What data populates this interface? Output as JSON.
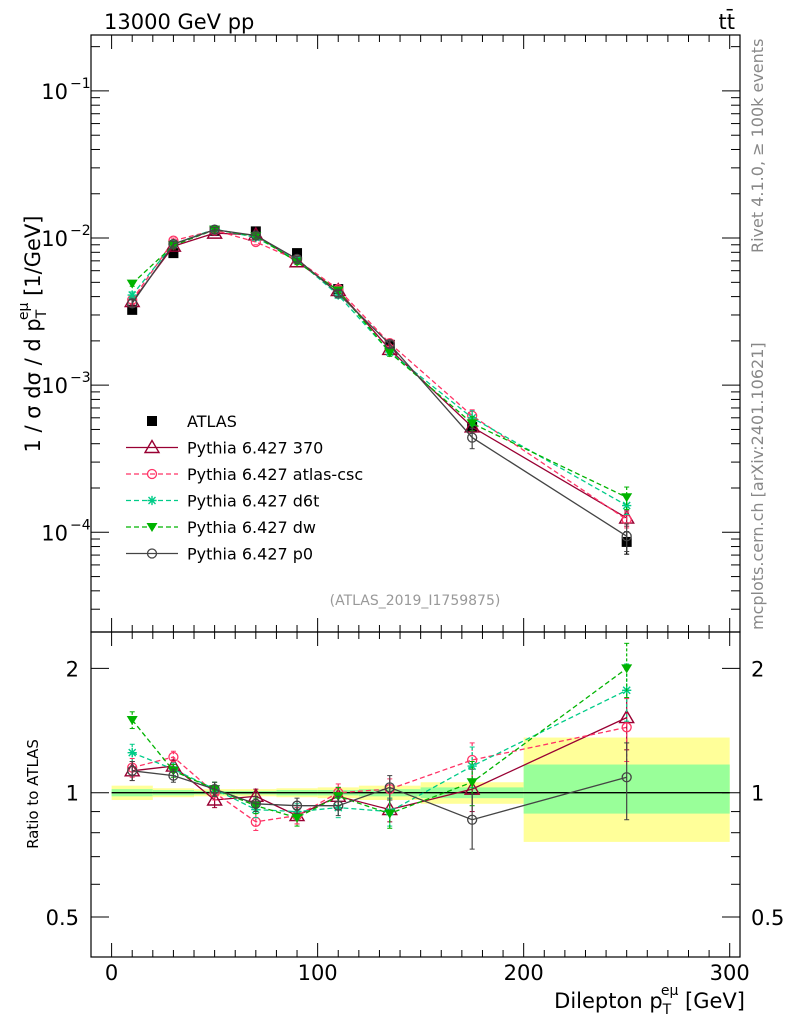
{
  "header": {
    "energy_label": "13000 GeV pp",
    "process_label": "tt̄"
  },
  "side_labels": {
    "rivet": "Rivet 4.1.0, ≥ 100k events",
    "mcplots": "mcplots.cern.ch [arXiv:2401.10621]"
  },
  "analysis_tag": "(ATLAS_2019_I1759875)",
  "colors": {
    "data": "#000000",
    "p370": "#990033",
    "atlas_csc": "#ff3366",
    "d6t": "#00cc88",
    "dw": "#00b300",
    "p0": "#444444",
    "band_inner": "#99ff99",
    "band_outer": "#ffff99"
  },
  "chart_data": [
    {
      "type": "scatter",
      "panel": "main",
      "yscale": "log",
      "ylabel_parts": {
        "main": "1 / σ  dσ / d p",
        "sub": "T",
        "sup": "eμ",
        "unit": " [1/GeV]"
      },
      "xlim": [
        -10,
        305
      ],
      "ylim": [
        2.1e-05,
        0.24
      ],
      "y_tick_labels": [
        "10",
        "10",
        "10",
        "10"
      ],
      "y_tick_exponents": [
        "−1",
        "−2",
        "−3",
        "−4"
      ],
      "y_tick_values": [
        0.1,
        0.01,
        0.001,
        0.0001
      ],
      "x": [
        10,
        30,
        50,
        70,
        90,
        110,
        135,
        175,
        250
      ],
      "series": [
        {
          "name": "ATLAS",
          "key": "data",
          "marker": "square",
          "line": "none",
          "values": [
            0.00325,
            0.0079,
            0.0112,
            0.0111,
            0.0079,
            0.0045,
            0.00188,
            0.00052,
            8.6e-05
          ],
          "errors": [
            0.00015,
            0.0003,
            0.0004,
            0.0004,
            0.0003,
            0.0002,
            0.0001,
            4e-05,
            1.5e-05
          ]
        },
        {
          "name": "Pythia 6.427 370",
          "key": "p370",
          "marker": "triangle-open",
          "line": "solid",
          "values": [
            0.0037,
            0.0088,
            0.0108,
            0.0105,
            0.0069,
            0.0044,
            0.00175,
            0.00052,
            0.000125
          ],
          "errors": [
            0.0002,
            0.0004,
            0.0004,
            0.0004,
            0.0003,
            0.0002,
            0.0001,
            5e-05,
            1.5e-05
          ]
        },
        {
          "name": "Pythia 6.427 atlas-csc",
          "key": "atlas_csc",
          "marker": "circle-open",
          "line": "dashed",
          "values": [
            0.0038,
            0.0096,
            0.0113,
            0.0094,
            0.0071,
            0.0045,
            0.00193,
            0.00062,
            0.000122
          ],
          "errors": [
            0.0002,
            0.0004,
            0.0004,
            0.0004,
            0.0003,
            0.0002,
            0.0001,
            6e-05,
            1.5e-05
          ]
        },
        {
          "name": "Pythia 6.427 d6t",
          "key": "d6t",
          "marker": "star",
          "line": "dashed",
          "values": [
            0.0041,
            0.0091,
            0.0115,
            0.0101,
            0.0071,
            0.0041,
            0.00168,
            0.0006,
            0.000152
          ],
          "errors": [
            0.0002,
            0.0004,
            0.0004,
            0.0004,
            0.0003,
            0.0002,
            0.0001,
            7e-05,
            2e-05
          ]
        },
        {
          "name": "Pythia 6.427 dw",
          "key": "dw",
          "marker": "triangle-down",
          "line": "dashed",
          "values": [
            0.0049,
            0.0089,
            0.0114,
            0.0103,
            0.0069,
            0.0044,
            0.00167,
            0.00055,
            0.000173
          ],
          "errors": [
            0.0002,
            0.0004,
            0.0004,
            0.0004,
            0.0003,
            0.0002,
            0.0001,
            6e-05,
            3e-05
          ]
        },
        {
          "name": "Pythia 6.427 p0",
          "key": "p0",
          "marker": "circle-open",
          "line": "solid",
          "values": [
            0.0036,
            0.0091,
            0.0114,
            0.0104,
            0.0072,
            0.0042,
            0.0019,
            0.00044,
            9.4e-05
          ],
          "errors": [
            0.0002,
            0.0004,
            0.0004,
            0.0004,
            0.0003,
            0.0002,
            0.0001,
            7e-05,
            2e-05
          ]
        }
      ],
      "legend_position": "middle-left"
    },
    {
      "type": "scatter",
      "panel": "ratio",
      "ylabel": "Ratio to ATLAS",
      "yscale": "log",
      "xlim": [
        -10,
        305
      ],
      "ylim": [
        0.4,
        2.45
      ],
      "y_tick_labels": [
        "2",
        "1",
        "0.5"
      ],
      "y_tick_values": [
        2,
        1,
        0.5
      ],
      "x_tick_labels": [
        "0",
        "100",
        "200",
        "300"
      ],
      "x_tick_values": [
        0,
        100,
        200,
        300
      ],
      "xlabel_parts": {
        "main": "Dilepton p",
        "sub": "T",
        "sup": "eμ",
        "unit": " [GeV]"
      },
      "reference_line": 1,
      "bands": [
        {
          "x0": 0,
          "x1": 20,
          "inner": [
            0.98,
            1.02
          ],
          "outer": [
            0.96,
            1.04
          ]
        },
        {
          "x0": 20,
          "x1": 40,
          "inner": [
            0.985,
            1.015
          ],
          "outer": [
            0.975,
            1.025
          ]
        },
        {
          "x0": 40,
          "x1": 60,
          "inner": [
            0.99,
            1.01
          ],
          "outer": [
            0.98,
            1.02
          ]
        },
        {
          "x0": 60,
          "x1": 80,
          "inner": [
            0.99,
            1.01
          ],
          "outer": [
            0.98,
            1.02
          ]
        },
        {
          "x0": 80,
          "x1": 100,
          "inner": [
            0.985,
            1.015
          ],
          "outer": [
            0.975,
            1.025
          ]
        },
        {
          "x0": 100,
          "x1": 120,
          "inner": [
            0.985,
            1.015
          ],
          "outer": [
            0.97,
            1.03
          ]
        },
        {
          "x0": 120,
          "x1": 150,
          "inner": [
            0.98,
            1.02
          ],
          "outer": [
            0.96,
            1.04
          ]
        },
        {
          "x0": 150,
          "x1": 200,
          "inner": [
            0.97,
            1.03
          ],
          "outer": [
            0.94,
            1.06
          ]
        },
        {
          "x0": 200,
          "x1": 300,
          "inner": [
            0.89,
            1.17
          ],
          "outer": [
            0.76,
            1.36
          ]
        }
      ],
      "x": [
        10,
        30,
        50,
        70,
        90,
        110,
        135,
        175,
        250
      ],
      "series": [
        {
          "name": "Pythia 6.427 370",
          "key": "p370",
          "marker": "triangle-open",
          "line": "solid",
          "values": [
            1.13,
            1.16,
            0.96,
            0.98,
            0.88,
            0.98,
            0.91,
            1.02,
            1.52
          ],
          "errors": [
            0.06,
            0.04,
            0.04,
            0.04,
            0.04,
            0.05,
            0.06,
            0.12,
            0.25
          ]
        },
        {
          "name": "Pythia 6.427 atlas-csc",
          "key": "atlas_csc",
          "marker": "circle-open",
          "line": "dashed",
          "values": [
            1.15,
            1.22,
            1.0,
            0.85,
            0.88,
            1.0,
            1.02,
            1.2,
            1.44
          ],
          "errors": [
            0.06,
            0.04,
            0.04,
            0.04,
            0.04,
            0.05,
            0.06,
            0.12,
            0.25
          ]
        },
        {
          "name": "Pythia 6.427 d6t",
          "key": "d6t",
          "marker": "star",
          "line": "dashed",
          "values": [
            1.25,
            1.14,
            1.02,
            0.91,
            0.9,
            0.92,
            0.9,
            1.16,
            1.77
          ],
          "errors": [
            0.06,
            0.04,
            0.04,
            0.04,
            0.04,
            0.05,
            0.07,
            0.13,
            0.28
          ]
        },
        {
          "name": "Pythia 6.427 dw",
          "key": "dw",
          "marker": "triangle-down",
          "line": "dashed",
          "values": [
            1.5,
            1.13,
            1.02,
            0.93,
            0.87,
            0.98,
            0.89,
            1.06,
            2.0
          ],
          "errors": [
            0.07,
            0.04,
            0.04,
            0.04,
            0.04,
            0.05,
            0.07,
            0.13,
            0.3
          ]
        },
        {
          "name": "Pythia 6.427 p0",
          "key": "p0",
          "marker": "circle-open",
          "line": "solid",
          "values": [
            1.13,
            1.1,
            1.02,
            0.94,
            0.93,
            0.93,
            1.03,
            0.86,
            1.09
          ],
          "errors": [
            0.06,
            0.04,
            0.04,
            0.04,
            0.04,
            0.05,
            0.07,
            0.13,
            0.23
          ]
        }
      ]
    }
  ]
}
